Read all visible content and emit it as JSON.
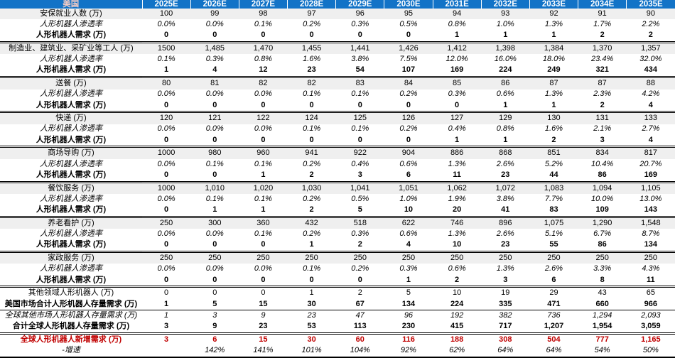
{
  "colors": {
    "header_bg": "#1273C7",
    "header_text": "#FFFFFF",
    "region_text": "#F6CCC4",
    "accent_red": "#C00000",
    "stripe_bg": "#EFEFEF"
  },
  "chart_data": {
    "type": "table",
    "title_cell": "美国",
    "columns": [
      "2025E",
      "2026E",
      "2027E",
      "2028E",
      "2029E",
      "2030E",
      "2031E",
      "2032E",
      "2033E",
      "2034E",
      "2035E"
    ],
    "rows": [
      {
        "label": "安保就业人数 (万)",
        "style": "cat",
        "values": [
          "100",
          "99",
          "98",
          "97",
          "96",
          "95",
          "94",
          "93",
          "92",
          "91",
          "90"
        ]
      },
      {
        "label": "人形机器人渗透率",
        "style": "pen",
        "values": [
          "0.0%",
          "0.0%",
          "0.1%",
          "0.2%",
          "0.3%",
          "0.5%",
          "0.8%",
          "1.0%",
          "1.3%",
          "1.7%",
          "2.2%"
        ]
      },
      {
        "label": "人形机器人需求 (万)",
        "style": "dem",
        "values": [
          "0",
          "0",
          "0",
          "0",
          "0",
          "0",
          "1",
          "1",
          "1",
          "2",
          "2"
        ]
      },
      {
        "label": "制造业、建筑业、采矿业等工人 (万)",
        "style": "cat",
        "values": [
          "1500",
          "1,485",
          "1,470",
          "1,455",
          "1,441",
          "1,426",
          "1,412",
          "1,398",
          "1,384",
          "1,370",
          "1,357"
        ]
      },
      {
        "label": "人形机器人渗透率",
        "style": "pen",
        "values": [
          "0.1%",
          "0.3%",
          "0.8%",
          "1.6%",
          "3.8%",
          "7.5%",
          "12.0%",
          "16.0%",
          "18.0%",
          "23.4%",
          "32.0%"
        ]
      },
      {
        "label": "人形机器人需求 (万)",
        "style": "dem",
        "values": [
          "1",
          "4",
          "12",
          "23",
          "54",
          "107",
          "169",
          "224",
          "249",
          "321",
          "434"
        ]
      },
      {
        "label": "送餐 (万)",
        "style": "cat",
        "values": [
          "80",
          "81",
          "82",
          "82",
          "83",
          "84",
          "85",
          "86",
          "87",
          "87",
          "88"
        ]
      },
      {
        "label": "人形机器人渗透率",
        "style": "pen",
        "values": [
          "0.0%",
          "0.0%",
          "0.0%",
          "0.1%",
          "0.1%",
          "0.2%",
          "0.3%",
          "0.6%",
          "1.3%",
          "2.3%",
          "4.2%"
        ]
      },
      {
        "label": "人形机器人需求 (万)",
        "style": "dem",
        "values": [
          "0",
          "0",
          "0",
          "0",
          "0",
          "0",
          "0",
          "1",
          "1",
          "2",
          "4"
        ]
      },
      {
        "label": "快递 (万)",
        "style": "cat",
        "values": [
          "120",
          "121",
          "122",
          "124",
          "125",
          "126",
          "127",
          "129",
          "130",
          "131",
          "133"
        ]
      },
      {
        "label": "人形机器人渗透率",
        "style": "pen",
        "values": [
          "0.0%",
          "0.0%",
          "0.0%",
          "0.1%",
          "0.1%",
          "0.2%",
          "0.4%",
          "0.8%",
          "1.6%",
          "2.1%",
          "2.7%"
        ]
      },
      {
        "label": "人形机器人需求 (万)",
        "style": "dem",
        "values": [
          "0",
          "0",
          "0",
          "0",
          "0",
          "0",
          "1",
          "1",
          "2",
          "3",
          "4"
        ]
      },
      {
        "label": "商场导购 (万)",
        "style": "cat",
        "values": [
          "1000",
          "980",
          "960",
          "941",
          "922",
          "904",
          "886",
          "868",
          "851",
          "834",
          "817"
        ]
      },
      {
        "label": "人形机器人渗透率",
        "style": "pen",
        "values": [
          "0.0%",
          "0.1%",
          "0.1%",
          "0.2%",
          "0.4%",
          "0.6%",
          "1.3%",
          "2.6%",
          "5.2%",
          "10.4%",
          "20.7%"
        ]
      },
      {
        "label": "人形机器人需求 (万)",
        "style": "dem",
        "values": [
          "0",
          "0",
          "1",
          "2",
          "3",
          "6",
          "11",
          "23",
          "44",
          "86",
          "169"
        ]
      },
      {
        "label": "餐饮服务 (万)",
        "style": "cat",
        "values": [
          "1000",
          "1,010",
          "1,020",
          "1,030",
          "1,041",
          "1,051",
          "1,062",
          "1,072",
          "1,083",
          "1,094",
          "1,105"
        ]
      },
      {
        "label": "人形机器人渗透率",
        "style": "pen",
        "values": [
          "0.0%",
          "0.1%",
          "0.1%",
          "0.2%",
          "0.5%",
          "1.0%",
          "1.9%",
          "3.8%",
          "7.7%",
          "10.0%",
          "13.0%"
        ]
      },
      {
        "label": "人形机器人需求 (万)",
        "style": "dem",
        "values": [
          "0",
          "1",
          "1",
          "2",
          "5",
          "10",
          "20",
          "41",
          "83",
          "109",
          "143"
        ]
      },
      {
        "label": "养老看护 (万)",
        "style": "cat",
        "values": [
          "250",
          "300",
          "360",
          "432",
          "518",
          "622",
          "746",
          "896",
          "1,075",
          "1,290",
          "1,548"
        ]
      },
      {
        "label": "人形机器人渗透率",
        "style": "pen",
        "values": [
          "0.0%",
          "0.0%",
          "0.1%",
          "0.2%",
          "0.3%",
          "0.6%",
          "1.3%",
          "2.6%",
          "5.1%",
          "6.7%",
          "8.7%"
        ]
      },
      {
        "label": "人形机器人需求 (万)",
        "style": "dem",
        "values": [
          "0",
          "0",
          "0",
          "1",
          "2",
          "4",
          "10",
          "23",
          "55",
          "86",
          "134"
        ]
      },
      {
        "label": "家政服务 (万)",
        "style": "cat",
        "values": [
          "250",
          "250",
          "250",
          "250",
          "250",
          "250",
          "250",
          "250",
          "250",
          "250",
          "250"
        ]
      },
      {
        "label": "人形机器人渗透率",
        "style": "pen",
        "values": [
          "0.0%",
          "0.0%",
          "0.0%",
          "0.1%",
          "0.2%",
          "0.3%",
          "0.6%",
          "1.3%",
          "2.6%",
          "3.3%",
          "4.3%"
        ]
      },
      {
        "label": "人形机器人需求 (万)",
        "style": "dem",
        "values": [
          "0",
          "0",
          "0",
          "0",
          "0",
          "1",
          "2",
          "3",
          "6",
          "8",
          "11"
        ]
      },
      {
        "label": "其他领域人形机器人 (万)",
        "style": "plain",
        "values": [
          "0",
          "0",
          "0",
          "1",
          "2",
          "5",
          "10",
          "19",
          "29",
          "43",
          "65"
        ]
      },
      {
        "label": "美国市场合计人形机器人存量需求 (万)",
        "style": "us_total",
        "values": [
          "1",
          "5",
          "15",
          "30",
          "67",
          "134",
          "224",
          "335",
          "471",
          "660",
          "966"
        ]
      },
      {
        "label": "全球其他市场人形机器人存量需求 (万)",
        "style": "global_other",
        "values": [
          "1",
          "3",
          "9",
          "23",
          "47",
          "96",
          "192",
          "382",
          "736",
          "1,294",
          "2,093"
        ]
      },
      {
        "label": "合计全球人形机器人存量需求 (万)",
        "style": "global_total",
        "values": [
          "3",
          "9",
          "23",
          "53",
          "113",
          "230",
          "415",
          "717",
          "1,207",
          "1,954",
          "3,059"
        ]
      },
      {
        "label": "全球人形机器人新增需求 (万)",
        "style": "new_demand",
        "values": [
          "3",
          "6",
          "15",
          "30",
          "60",
          "116",
          "188",
          "308",
          "504",
          "777",
          "1,165"
        ]
      },
      {
        "label": "-增速",
        "style": "growth",
        "values": [
          "",
          "142%",
          "141%",
          "101%",
          "104%",
          "92%",
          "62%",
          "64%",
          "64%",
          "54%",
          "50%"
        ]
      }
    ]
  }
}
